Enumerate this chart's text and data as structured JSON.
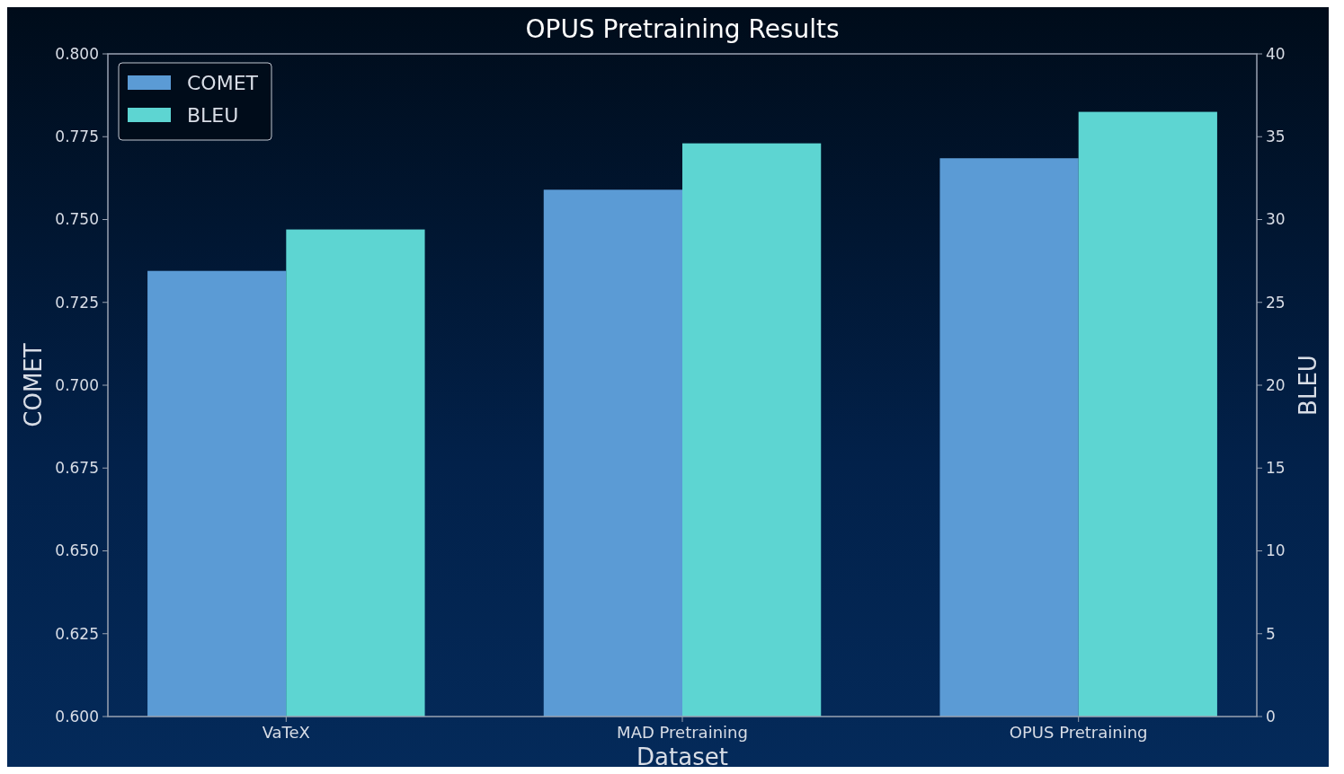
{
  "chart_data": {
    "type": "bar",
    "title": "OPUS Pretraining Results",
    "xlabel": "Dataset",
    "ylabel": "COMET",
    "y2label": "BLEU",
    "categories": [
      "VaTeX",
      "MAD Pretraining",
      "OPUS Pretraining"
    ],
    "series": [
      {
        "name": "COMET",
        "color": "#5b9bd5",
        "values": [
          0.7345,
          0.759,
          0.7685
        ]
      },
      {
        "name": "BLEU",
        "color": "#5dd5d2",
        "values": [
          29.4,
          34.6,
          36.5
        ],
        "axis": "y2"
      }
    ],
    "ylim": [
      0.6,
      0.8
    ],
    "yticks": [
      {
        "value": 0.6,
        "label": "0.600"
      },
      {
        "value": 0.625,
        "label": "0.625"
      },
      {
        "value": 0.65,
        "label": "0.650"
      },
      {
        "value": 0.675,
        "label": "0.675"
      },
      {
        "value": 0.7,
        "label": "0.700"
      },
      {
        "value": 0.725,
        "label": "0.725"
      },
      {
        "value": 0.75,
        "label": "0.750"
      },
      {
        "value": 0.775,
        "label": "0.775"
      },
      {
        "value": 0.8,
        "label": "0.800"
      }
    ],
    "y2lim": [
      0,
      40
    ],
    "y2ticks": [
      0,
      5,
      10,
      15,
      20,
      25,
      30,
      35,
      40
    ],
    "legend": "top left"
  }
}
